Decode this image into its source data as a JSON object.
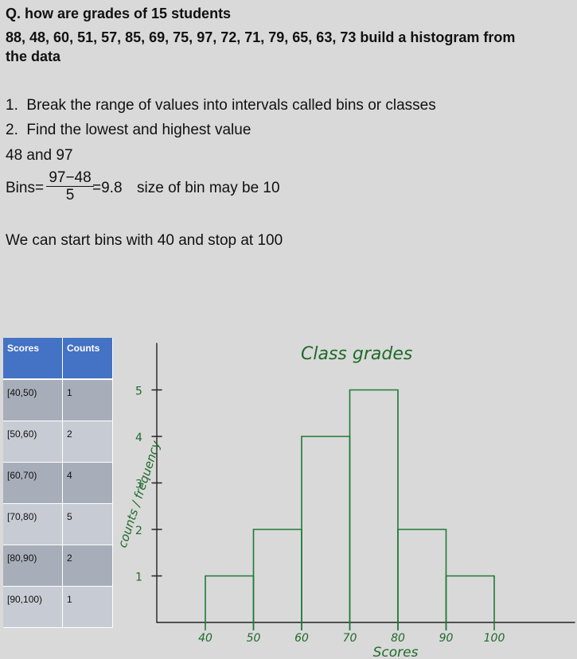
{
  "question": {
    "line1": "Q. how are grades of 15 students",
    "line2": "88, 48, 60, 51, 57, 85, 69, 75, 97, 72, 71, 79, 65, 63, 73 build a histogram from",
    "line3": "the data"
  },
  "steps": [
    "1.  Break the range of values into intervals called bins or classes",
    "2.  Find the lowest and highest value"
  ],
  "min_max": "48 and 97",
  "bins_formula": {
    "label": "Bins=",
    "numerator": "97−48",
    "denominator": "5",
    "result": "=9.8",
    "note": "size of bin may be 10"
  },
  "start_note": "We can start bins with 40 and stop at 100",
  "table": {
    "headers": [
      "Scores",
      "Counts"
    ],
    "rows": [
      {
        "scores": "[40,50)",
        "counts": "1"
      },
      {
        "scores": "[50,60)",
        "counts": "2"
      },
      {
        "scores": "[60,70)",
        "counts": "4"
      },
      {
        "scores": "[70,80)",
        "counts": "5"
      },
      {
        "scores": "[80,90)",
        "counts": "2"
      },
      {
        "scores": "[90,100)",
        "counts": "1"
      }
    ]
  },
  "chart_data": {
    "type": "bar",
    "title": "Class grades",
    "xlabel": "Scores",
    "ylabel": "counts / frequency",
    "x_ticks": [
      "40",
      "50",
      "60",
      "70",
      "80",
      "90",
      "100"
    ],
    "y_ticks": [
      "1",
      "2",
      "3",
      "4",
      "5"
    ],
    "bins": [
      [
        40,
        50
      ],
      [
        50,
        60
      ],
      [
        60,
        70
      ],
      [
        70,
        80
      ],
      [
        80,
        90
      ],
      [
        90,
        100
      ]
    ],
    "values": [
      1,
      2,
      4,
      5,
      2,
      1
    ],
    "ylim": [
      0,
      5
    ]
  },
  "colors": {
    "background": "#d9d9d9",
    "table_header": "#4472c4",
    "row_dark": "#a8aeb9",
    "row_light": "#c7ccd4",
    "handwriting": "#1e7a34"
  }
}
